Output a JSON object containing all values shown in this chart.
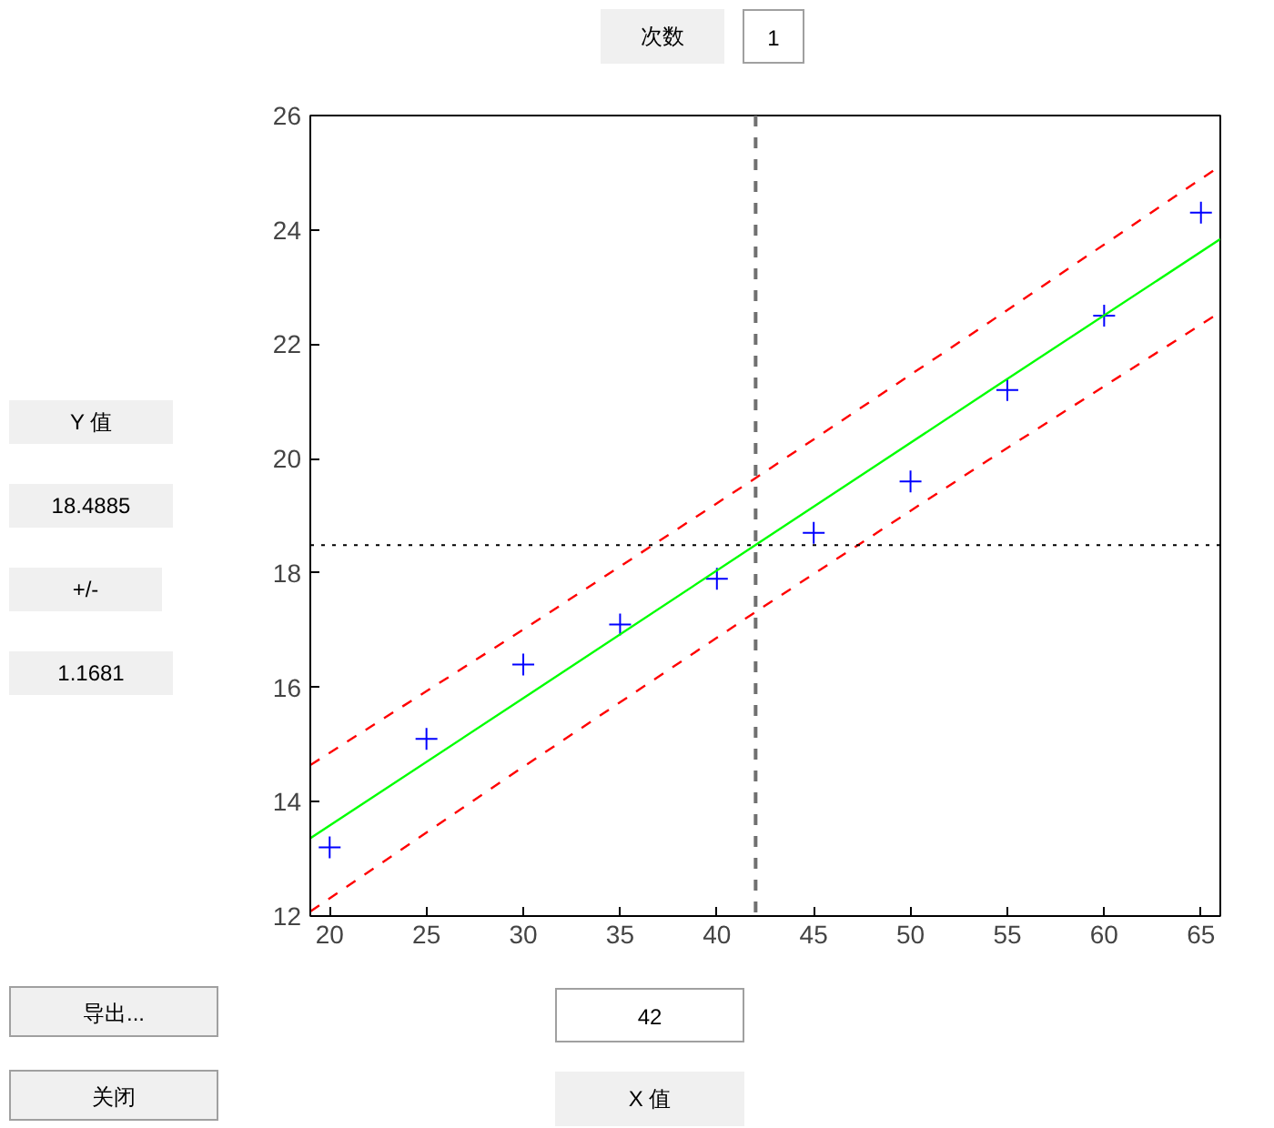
{
  "chart_data": {
    "type": "scatter",
    "xlim": [
      19,
      66
    ],
    "ylim": [
      12,
      26
    ],
    "xticks": [
      20,
      25,
      30,
      35,
      40,
      45,
      50,
      55,
      60,
      65
    ],
    "yticks": [
      12,
      14,
      16,
      18,
      20,
      22,
      24,
      26
    ],
    "grid": false,
    "series": [
      {
        "marker": "cross",
        "color": "#0000ff",
        "x": [
          20,
          25,
          30,
          35,
          40,
          45,
          50,
          55,
          60,
          65
        ],
        "values": [
          13.2,
          15.1,
          16.4,
          17.1,
          17.9,
          18.7,
          19.6,
          21.2,
          22.5,
          24.3
        ]
      },
      {
        "type": "line",
        "line_style": "solid",
        "color": "#00ff00",
        "x": [
          19,
          30,
          42,
          54,
          66
        ],
        "values": [
          13.36,
          15.81,
          18.49,
          21.17,
          23.84
        ]
      },
      {
        "type": "line",
        "line_style": "dashed",
        "color": "#ff0000",
        "x": [
          19,
          30,
          42,
          54,
          66
        ],
        "values": [
          14.64,
          17.01,
          19.66,
          22.37,
          25.12
        ]
      },
      {
        "type": "line",
        "line_style": "dashed",
        "color": "#ff0000",
        "x": [
          19,
          30,
          42,
          54,
          66
        ],
        "values": [
          12.08,
          14.61,
          17.32,
          19.97,
          22.56
        ]
      }
    ],
    "ref_lines": [
      {
        "axis": "x",
        "value": 42,
        "color": "#707070",
        "line_style": "dashed"
      },
      {
        "axis": "y",
        "value": 18.4885,
        "color": "#000000",
        "line_style": "dotted"
      }
    ],
    "annotations": [
      "次数",
      "1",
      "Y 值",
      "18.4885",
      "+/-",
      "1.1681",
      "导出...",
      "关闭",
      "42",
      "X 值"
    ]
  }
}
